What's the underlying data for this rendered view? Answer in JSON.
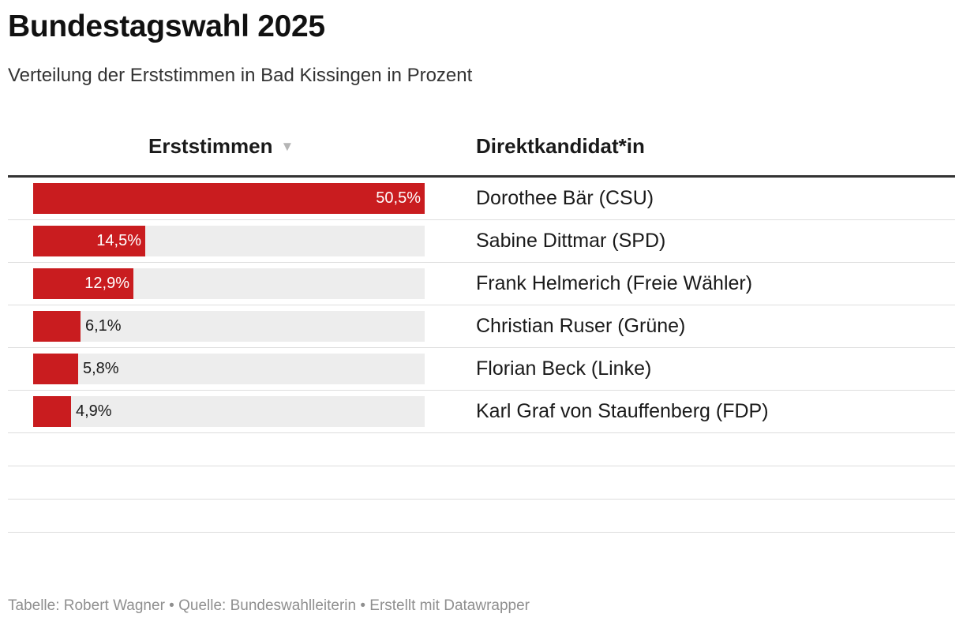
{
  "title": "Bundestagswahl 2025",
  "subtitle": "Verteilung der Erststimmen in Bad Kissingen in Prozent",
  "colors": {
    "bar": "#c91c1f",
    "track": "#ededed"
  },
  "icons": {
    "sort": "sort-descending-icon"
  },
  "sort_glyph": "▼",
  "chart_data": {
    "type": "table",
    "columns": [
      "Erststimmen",
      "Direktkandidat*in"
    ],
    "sorted_by": "Erststimmen",
    "sort_order": "descending",
    "value_range": [
      0,
      50.5
    ],
    "rows": [
      {
        "value": 50.5,
        "label": "50,5%",
        "name": "Dorothee Bär (CSU)"
      },
      {
        "value": 14.5,
        "label": "14,5%",
        "name": "Sabine Dittmar (SPD)"
      },
      {
        "value": 12.9,
        "label": "12,9%",
        "name": "Frank Helmerich (Freie Wähler)"
      },
      {
        "value": 6.1,
        "label": "6,1%",
        "name": "Christian Ruser (Grüne)"
      },
      {
        "value": 5.8,
        "label": "5,8%",
        "name": "Florian Beck (Linke)"
      },
      {
        "value": 4.9,
        "label": "4,9%",
        "name": "Karl Graf von Stauffenberg (FDP)"
      }
    ]
  },
  "footer": "Tabelle: Robert Wagner • Quelle: Bundeswahlleiterin • Erstellt mit Datawrapper"
}
